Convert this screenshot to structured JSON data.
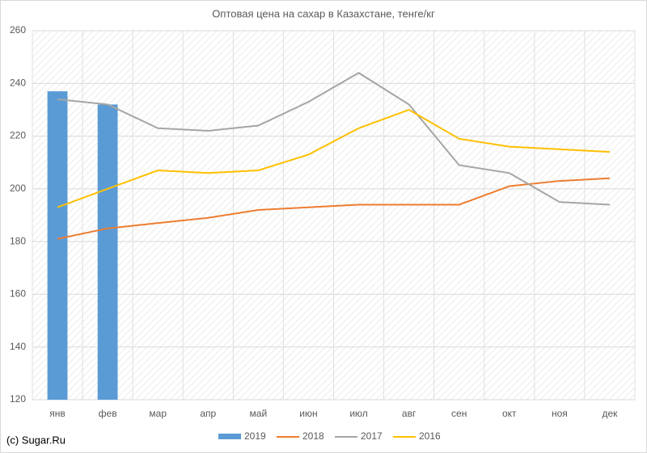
{
  "chart_data": {
    "type": "combo",
    "title": "Оптовая цена на сахар в Казахстане, тенге/кг",
    "categories": [
      "янв",
      "фев",
      "мар",
      "апр",
      "май",
      "июн",
      "июл",
      "авг",
      "сен",
      "окт",
      "ноя",
      "дек"
    ],
    "series": [
      {
        "name": "2019",
        "type": "bar",
        "color": "#5b9bd5",
        "values": [
          237,
          232,
          null,
          null,
          null,
          null,
          null,
          null,
          null,
          null,
          null,
          null
        ]
      },
      {
        "name": "2018",
        "type": "line",
        "color": "#ed7d31",
        "values": [
          181,
          185,
          187,
          189,
          192,
          193,
          194,
          194,
          194,
          201,
          203,
          204
        ]
      },
      {
        "name": "2017",
        "type": "line",
        "color": "#a5a5a5",
        "values": [
          234,
          232,
          223,
          222,
          224,
          233,
          244,
          232,
          209,
          206,
          195,
          194
        ]
      },
      {
        "name": "2016",
        "type": "line",
        "color": "#ffc000",
        "values": [
          193,
          200,
          207,
          206,
          207,
          213,
          223,
          230,
          219,
          216,
          215,
          214
        ]
      }
    ],
    "ylim": [
      120,
      260
    ],
    "yticks": [
      120,
      140,
      160,
      180,
      200,
      220,
      240,
      260
    ],
    "grid": true,
    "legend": "bottom",
    "source": "(c) Sugar.Ru"
  }
}
